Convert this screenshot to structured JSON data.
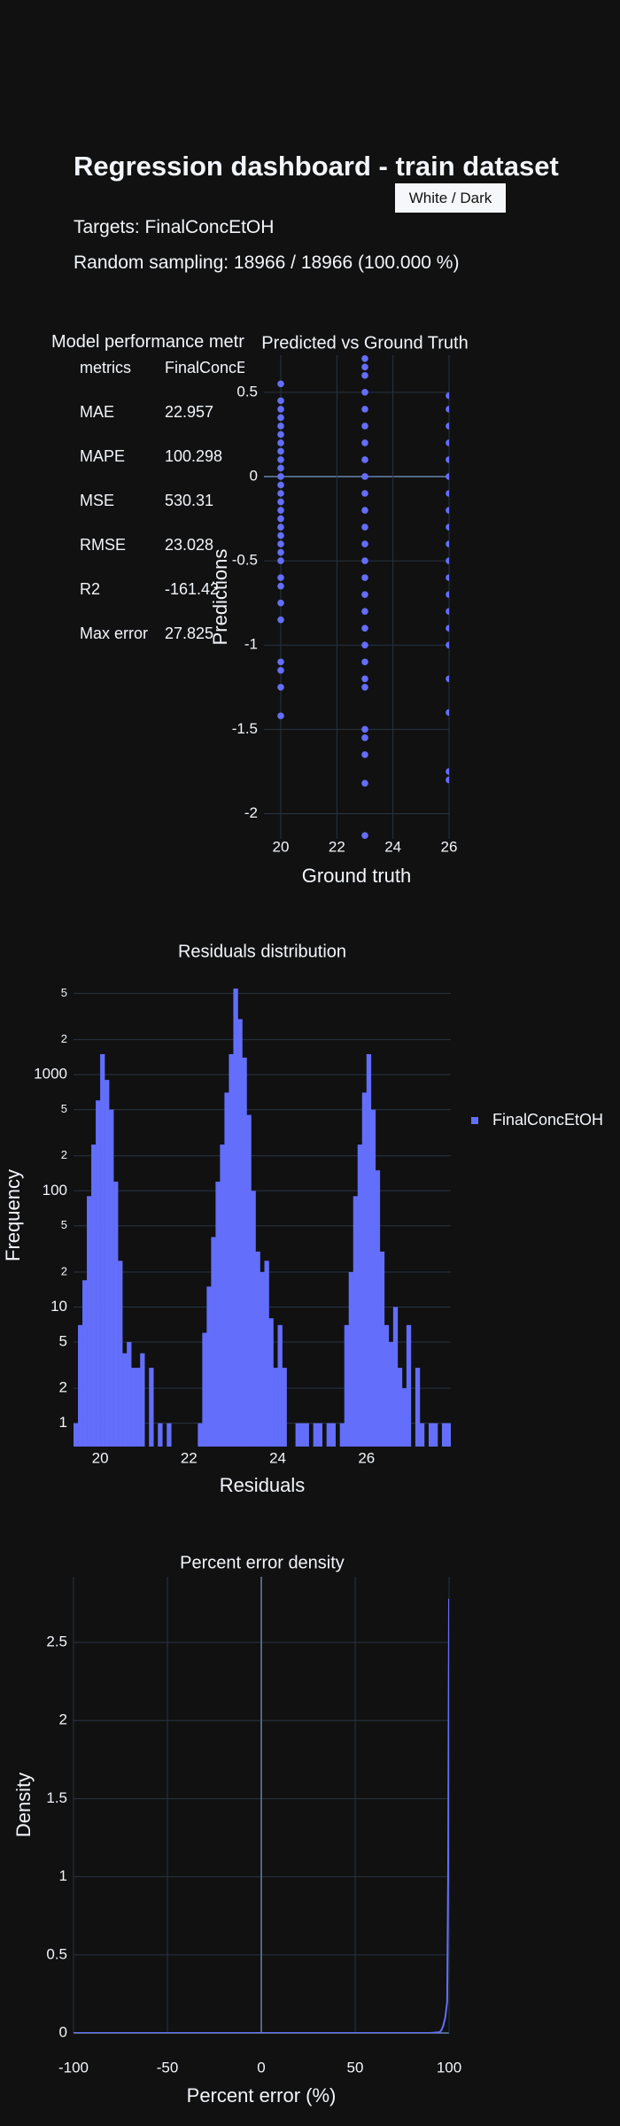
{
  "header": {
    "title": "Regression dashboard - train dataset",
    "theme_button": "White / Dark",
    "targets": "Targets: FinalConcEtOH",
    "sampling": "Random sampling: 18966 / 18966 (100.000 %)"
  },
  "metrics_table": {
    "title": "Model performance metrics",
    "header": [
      "metrics",
      "FinalConcEtOH"
    ],
    "rows": [
      [
        "MAE",
        "22.957"
      ],
      [
        "MAPE",
        "100.298"
      ],
      [
        "MSE",
        "530.31"
      ],
      [
        "RMSE",
        "23.028"
      ],
      [
        "R2",
        "-161.42"
      ],
      [
        "Max error",
        "27.825"
      ]
    ]
  },
  "chart_data": [
    {
      "type": "scatter",
      "title": "Predicted vs Ground Truth",
      "xlabel": "Ground truth",
      "ylabel": "Predictions",
      "color": "#636efa",
      "grid": "both",
      "x": [
        20,
        20,
        20,
        20,
        20,
        20,
        20,
        20,
        20,
        20,
        20,
        20,
        20,
        20,
        20,
        20,
        20,
        20,
        20,
        20,
        20,
        20,
        20,
        20,
        20,
        20,
        20,
        20,
        20,
        23,
        23,
        23,
        23,
        23,
        23,
        23,
        23,
        23,
        23,
        23,
        23,
        23,
        23,
        23,
        23,
        23,
        23,
        23,
        23,
        23,
        23,
        23,
        23,
        23,
        23,
        23,
        26,
        26,
        26,
        26,
        26,
        26,
        26,
        26,
        26,
        26,
        26,
        26,
        26,
        26,
        26,
        26,
        26,
        26,
        26,
        26
      ],
      "values": [
        0.55,
        0.45,
        0.4,
        0.35,
        0.3,
        0.25,
        0.2,
        0.15,
        0.1,
        0.05,
        0,
        -0.05,
        -0.1,
        -0.15,
        -0.2,
        -0.25,
        -0.3,
        -0.35,
        -0.4,
        -0.45,
        -0.5,
        -0.6,
        -0.65,
        -0.75,
        -0.85,
        -1.1,
        -1.15,
        -1.25,
        -1.42,
        0.7,
        0.65,
        0.6,
        0.5,
        0.4,
        0.3,
        0.2,
        0.1,
        0,
        -0.1,
        -0.2,
        -0.3,
        -0.4,
        -0.5,
        -0.6,
        -0.7,
        -0.8,
        -0.9,
        -1.0,
        -1.1,
        -1.2,
        -1.25,
        -1.5,
        -1.55,
        -1.65,
        -1.82,
        -2.13,
        0.48,
        0.4,
        0.3,
        0.2,
        0.1,
        0,
        -0.1,
        -0.2,
        -0.3,
        -0.4,
        -0.5,
        -0.6,
        -0.7,
        -0.8,
        -0.9,
        -1.0,
        -1.2,
        -1.4,
        -1.75,
        -1.8
      ],
      "xlim": [
        19.4,
        26
      ],
      "xticks": [
        20,
        22,
        24,
        26
      ],
      "ylim": [
        -2.15,
        0.72
      ],
      "yticks": [
        0.5,
        0,
        -0.5,
        -1,
        -1.5,
        -2
      ]
    },
    {
      "type": "histogram",
      "title": "Residuals distribution",
      "xlabel": "Residuals",
      "ylabel": "Frequency",
      "log_y": true,
      "legend": "right",
      "grid": "y",
      "bins": [
        19.4,
        19.5,
        19.6,
        19.7,
        19.8,
        19.9,
        20.0,
        20.1,
        20.2,
        20.3,
        20.4,
        20.5,
        20.6,
        20.7,
        20.8,
        20.9,
        21.0,
        21.1,
        21.2,
        21.3,
        21.4,
        21.5,
        21.6,
        21.7,
        21.8,
        21.9,
        22.0,
        22.1,
        22.2,
        22.3,
        22.4,
        22.5,
        22.6,
        22.7,
        22.8,
        22.9,
        23.0,
        23.1,
        23.2,
        23.3,
        23.4,
        23.5,
        23.6,
        23.7,
        23.8,
        23.9,
        24.0,
        24.1,
        24.2,
        24.3,
        24.4,
        24.5,
        24.6,
        24.7,
        24.8,
        24.9,
        25.0,
        25.1,
        25.2,
        25.3,
        25.4,
        25.5,
        25.6,
        25.7,
        25.8,
        25.9,
        26.0,
        26.1,
        26.2,
        26.3,
        26.4,
        26.5,
        26.6,
        26.7,
        26.8,
        26.9,
        27.0,
        27.1,
        27.2,
        27.3,
        27.4,
        27.5,
        27.6,
        27.7,
        27.8,
        27.9
      ],
      "series": [
        {
          "name": "FinalConcEtOH",
          "color": "#636efa",
          "values": [
            1,
            7,
            17,
            90,
            250,
            600,
            1500,
            900,
            500,
            120,
            25,
            4,
            5,
            3,
            3,
            4,
            0,
            3,
            0,
            1,
            0,
            1,
            0,
            0,
            0,
            0,
            0,
            0,
            1,
            6,
            15,
            40,
            120,
            250,
            700,
            1500,
            5500,
            3000,
            1400,
            450,
            100,
            30,
            20,
            25,
            8,
            3,
            7,
            3,
            0,
            0,
            1,
            1,
            1,
            0,
            1,
            1,
            0,
            1,
            1,
            0,
            1,
            7,
            20,
            90,
            250,
            700,
            1500,
            500,
            150,
            30,
            7,
            5,
            10,
            3,
            2,
            7,
            0,
            3,
            1,
            0,
            1,
            1,
            0,
            1,
            1
          ]
        }
      ],
      "xlim": [
        19.4,
        27.9
      ],
      "xticks": [
        20,
        22,
        24,
        26
      ],
      "ylim": [
        0.63,
        6000
      ],
      "yticks": [
        1,
        2,
        5,
        10,
        {
          "value": 20,
          "label": "2"
        },
        {
          "value": 50,
          "label": "5"
        },
        100,
        {
          "value": 200,
          "label": "2"
        },
        {
          "value": 500,
          "label": "5"
        },
        1000,
        {
          "value": 2000,
          "label": "2"
        },
        {
          "value": 5000,
          "label": "5"
        }
      ]
    },
    {
      "type": "line",
      "title": "Percent error density",
      "xlabel": "Percent error (%)",
      "ylabel": "Density",
      "color": "#636efa",
      "grid": "both",
      "x": [
        -100,
        90,
        95,
        96,
        97,
        98,
        99,
        99.5,
        100
      ],
      "values": [
        0,
        0,
        0.005,
        0.02,
        0.05,
        0.1,
        0.2,
        1.0,
        2.78
      ],
      "xlim": [
        -100,
        100
      ],
      "xticks": [
        -100,
        -50,
        0,
        50,
        100
      ],
      "ylim": [
        0,
        2.92
      ],
      "yticks": [
        0,
        0.5,
        1,
        1.5,
        2,
        2.5
      ]
    }
  ]
}
